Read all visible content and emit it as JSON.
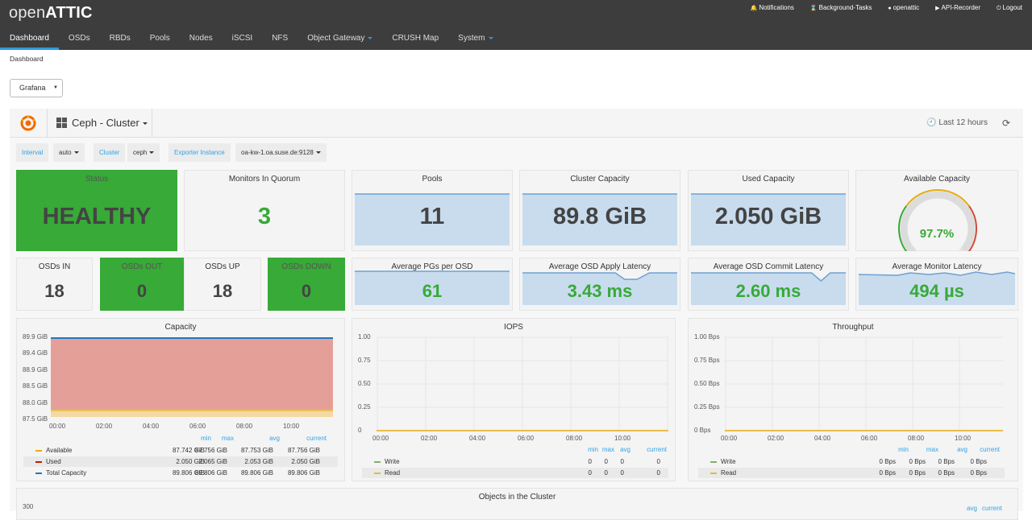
{
  "app": {
    "logo_part1": "open",
    "logo_part2": "ATTIC",
    "top_links": [
      {
        "icon": "bell-icon",
        "glyph": "🔔",
        "label": "Notifications"
      },
      {
        "icon": "hourglass-icon",
        "glyph": "⌛",
        "label": "Background-Tasks"
      },
      {
        "icon": "user-icon",
        "glyph": "●",
        "label": "openattic"
      },
      {
        "icon": "play-icon",
        "glyph": "▶",
        "label": "API-Recorder"
      },
      {
        "icon": "logout-icon",
        "glyph": "⏻",
        "label": "Logout"
      }
    ]
  },
  "nav": {
    "items": [
      {
        "label": "Dashboard",
        "active": true,
        "dropdown": false
      },
      {
        "label": "OSDs",
        "active": false,
        "dropdown": false
      },
      {
        "label": "RBDs",
        "active": false,
        "dropdown": false
      },
      {
        "label": "Pools",
        "active": false,
        "dropdown": false
      },
      {
        "label": "Nodes",
        "active": false,
        "dropdown": false
      },
      {
        "label": "iSCSI",
        "active": false,
        "dropdown": false
      },
      {
        "label": "NFS",
        "active": false,
        "dropdown": false
      },
      {
        "label": "Object Gateway",
        "active": false,
        "dropdown": true
      },
      {
        "label": "CRUSH Map",
        "active": false,
        "dropdown": false
      },
      {
        "label": "System",
        "active": false,
        "dropdown": true
      }
    ]
  },
  "breadcrumb": "Dashboard",
  "grafana_select": {
    "value": "Grafana"
  },
  "grafana": {
    "dashboard_title": "Ceph - Cluster",
    "time_range": "Last 12 hours",
    "variables": [
      {
        "label": "Interval",
        "value": "auto"
      },
      {
        "label": "Cluster",
        "value": "ceph"
      },
      {
        "label": "Exporter Instance",
        "value": "oa-kw-1.oa.suse.de:9128"
      }
    ]
  },
  "stats_row1": [
    {
      "title": "Status",
      "value": "HEALTHY",
      "style": "green"
    },
    {
      "title": "Monitors In Quorum",
      "value": "3",
      "style": "plain-green-text"
    },
    {
      "title": "Pools",
      "value": "11",
      "style": "spark"
    },
    {
      "title": "Cluster Capacity",
      "value": "89.8 GiB",
      "style": "spark"
    },
    {
      "title": "Used Capacity",
      "value": "2.050 GiB",
      "style": "spark"
    },
    {
      "title": "Available Capacity",
      "value": "97.7%",
      "style": "gauge",
      "gauge_fraction": 0.977
    }
  ],
  "stats_row2": [
    {
      "title": "OSDs IN",
      "value": "18",
      "style": "plain"
    },
    {
      "title": "OSDs OUT",
      "value": "0",
      "style": "green"
    },
    {
      "title": "OSDs UP",
      "value": "18",
      "style": "plain"
    },
    {
      "title": "OSDs DOWN",
      "value": "0",
      "style": "green"
    },
    {
      "title": "Average PGs per OSD",
      "value": "61",
      "style": "spark-green"
    },
    {
      "title": "Average OSD Apply Latency",
      "value": "3.43 ms",
      "style": "spark-green"
    },
    {
      "title": "Average OSD Commit Latency",
      "value": "2.60 ms",
      "style": "spark-green"
    },
    {
      "title": "Average Monitor Latency",
      "value": "494 µs",
      "style": "spark-green"
    }
  ],
  "capacity": {
    "title": "Capacity",
    "y_ticks": [
      "89.9 GiB",
      "89.4 GiB",
      "88.9 GiB",
      "88.5 GiB",
      "88.0 GiB",
      "87.5 GiB"
    ],
    "x_ticks": [
      "00:00",
      "02:00",
      "04:00",
      "06:00",
      "08:00",
      "10:00"
    ],
    "legend_headers": [
      "min",
      "max",
      "avg",
      "current"
    ],
    "series": [
      {
        "name": "Available",
        "color": "#e5ac0e",
        "min": "87.742 GiB",
        "max": "87.756 GiB",
        "avg": "87.753 GiB",
        "current": "87.756 GiB"
      },
      {
        "name": "Used",
        "color": "#bf1b00",
        "min": "2.050 GiB",
        "max": "2.065 GiB",
        "avg": "2.053 GiB",
        "current": "2.050 GiB"
      },
      {
        "name": "Total Capacity",
        "color": "#1f78c1",
        "min": "89.806 GiB",
        "max": "89.806 GiB",
        "avg": "89.806 GiB",
        "current": "89.806 GiB"
      }
    ]
  },
  "iops": {
    "title": "IOPS",
    "y_ticks": [
      "1.00",
      "0.75",
      "0.50",
      "0.25",
      "0"
    ],
    "x_ticks": [
      "00:00",
      "02:00",
      "04:00",
      "06:00",
      "08:00",
      "10:00"
    ],
    "legend_headers": [
      "min",
      "max",
      "avg",
      "current"
    ],
    "series": [
      {
        "name": "Write",
        "color": "#7eb26d",
        "min": "0",
        "max": "0",
        "avg": "0",
        "current": "0"
      },
      {
        "name": "Read",
        "color": "#eab839",
        "min": "0",
        "max": "0",
        "avg": "0",
        "current": "0"
      }
    ]
  },
  "throughput": {
    "title": "Throughput",
    "y_ticks": [
      "1.00 Bps",
      "0.75 Bps",
      "0.50 Bps",
      "0.25 Bps",
      "0 Bps"
    ],
    "x_ticks": [
      "00:00",
      "02:00",
      "04:00",
      "06:00",
      "08:00",
      "10:00"
    ],
    "legend_headers": [
      "min",
      "max",
      "avg",
      "current"
    ],
    "series": [
      {
        "name": "Write",
        "color": "#7eb26d",
        "min": "0 Bps",
        "max": "0 Bps",
        "avg": "0 Bps",
        "current": "0 Bps"
      },
      {
        "name": "Read",
        "color": "#eab839",
        "min": "0 Bps",
        "max": "0 Bps",
        "avg": "0 Bps",
        "current": "0 Bps"
      }
    ]
  },
  "objects": {
    "title": "Objects in the Cluster",
    "y_top_tick": "300",
    "legend_headers": [
      "avg",
      "current"
    ]
  },
  "colors": {
    "status_green": "#37aa37",
    "spark_fill": "#c8dcee",
    "spark_line": "#6fa1cf",
    "accent_blue": "#2b9bd8"
  }
}
